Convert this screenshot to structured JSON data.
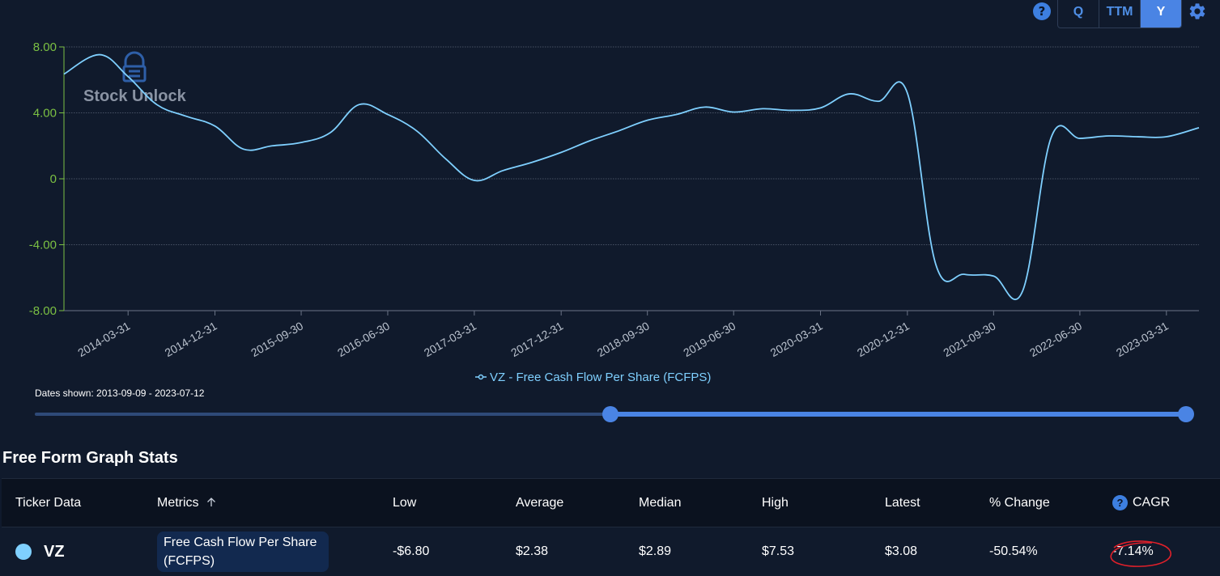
{
  "toolbar": {
    "help_icon": "question-circle-icon",
    "periods": [
      "Q",
      "TTM",
      "Y"
    ],
    "active_period": "Y",
    "settings_icon": "gear-icon"
  },
  "watermark": {
    "text": "Stock Unlock",
    "logo_icon": "stock-unlock-logo"
  },
  "chart_data": {
    "type": "line",
    "series": [
      {
        "name": "VZ - Free Cash Flow Per Share (FCFPS)",
        "color": "#7fd0ff",
        "points": [
          [
            "2013-09-09",
            6.35
          ],
          [
            "2013-12-31",
            7.53
          ],
          [
            "2014-03-31",
            6.2
          ],
          [
            "2014-06-30",
            4.5
          ],
          [
            "2014-09-30",
            3.8
          ],
          [
            "2014-12-31",
            3.2
          ],
          [
            "2015-03-31",
            1.8
          ],
          [
            "2015-06-30",
            2.0
          ],
          [
            "2015-09-30",
            2.2
          ],
          [
            "2015-12-31",
            2.8
          ],
          [
            "2016-03-31",
            4.5
          ],
          [
            "2016-06-30",
            3.9
          ],
          [
            "2016-09-30",
            2.9
          ],
          [
            "2016-12-31",
            1.2
          ],
          [
            "2017-03-31",
            -0.1
          ],
          [
            "2017-06-30",
            0.5
          ],
          [
            "2017-09-30",
            1.0
          ],
          [
            "2017-12-31",
            1.6
          ],
          [
            "2018-03-31",
            2.3
          ],
          [
            "2018-06-30",
            2.9
          ],
          [
            "2018-09-30",
            3.55
          ],
          [
            "2018-12-31",
            3.9
          ],
          [
            "2019-03-31",
            4.35
          ],
          [
            "2019-06-30",
            4.05
          ],
          [
            "2019-09-30",
            4.25
          ],
          [
            "2019-12-31",
            4.15
          ],
          [
            "2020-03-31",
            4.3
          ],
          [
            "2020-06-30",
            5.15
          ],
          [
            "2020-09-30",
            4.7
          ],
          [
            "2020-12-31",
            5.2
          ],
          [
            "2021-03-31",
            -5.2
          ],
          [
            "2021-06-30",
            -5.8
          ],
          [
            "2021-09-30",
            -5.9
          ],
          [
            "2021-12-31",
            -6.8
          ],
          [
            "2022-03-31",
            2.5
          ],
          [
            "2022-06-30",
            2.45
          ],
          [
            "2022-09-30",
            2.6
          ],
          [
            "2022-12-31",
            2.55
          ],
          [
            "2023-03-31",
            2.55
          ],
          [
            "2023-07-12",
            3.1
          ]
        ]
      }
    ],
    "y_ticks": [
      "8.00",
      "4.00",
      "0",
      "-4.00",
      "-8.00"
    ],
    "y_tick_values": [
      8,
      4,
      0,
      -4,
      -8
    ],
    "ylim": [
      -8,
      8
    ],
    "x_ticks": [
      "2014-03-31",
      "2014-12-31",
      "2015-09-30",
      "2016-06-30",
      "2017-03-31",
      "2017-12-31",
      "2018-09-30",
      "2019-06-30",
      "2020-03-31",
      "2020-12-31",
      "2021-09-30",
      "2022-06-30",
      "2023-03-31"
    ],
    "xlim": [
      "2013-09-09",
      "2023-07-12"
    ],
    "grid": true,
    "legend": "bottom-center",
    "legend_label": "VZ - Free Cash Flow Per Share (FCFPS)"
  },
  "date_range": {
    "label": "Dates shown: 2013-09-09 - 2023-07-12",
    "start_fraction": 0.5,
    "end_fraction": 1.0
  },
  "stats": {
    "title": "Free Form Graph Stats",
    "headers": {
      "ticker": "Ticker Data",
      "metrics": "Metrics",
      "metrics_sort_icon": "arrow-up-icon",
      "low": "Low",
      "average": "Average",
      "median": "Median",
      "high": "High",
      "latest": "Latest",
      "change": "% Change",
      "cagr": "CAGR",
      "cagr_help_icon": "question-circle-icon"
    },
    "rows": [
      {
        "ticker": "VZ",
        "dot_color": "#7fd0ff",
        "metric": "Free Cash Flow Per Share (FCFPS)",
        "low": "-$6.80",
        "average": "$2.38",
        "median": "$2.89",
        "high": "$7.53",
        "latest": "$3.08",
        "change": "-50.54%",
        "cagr": "-7.14%"
      }
    ]
  }
}
